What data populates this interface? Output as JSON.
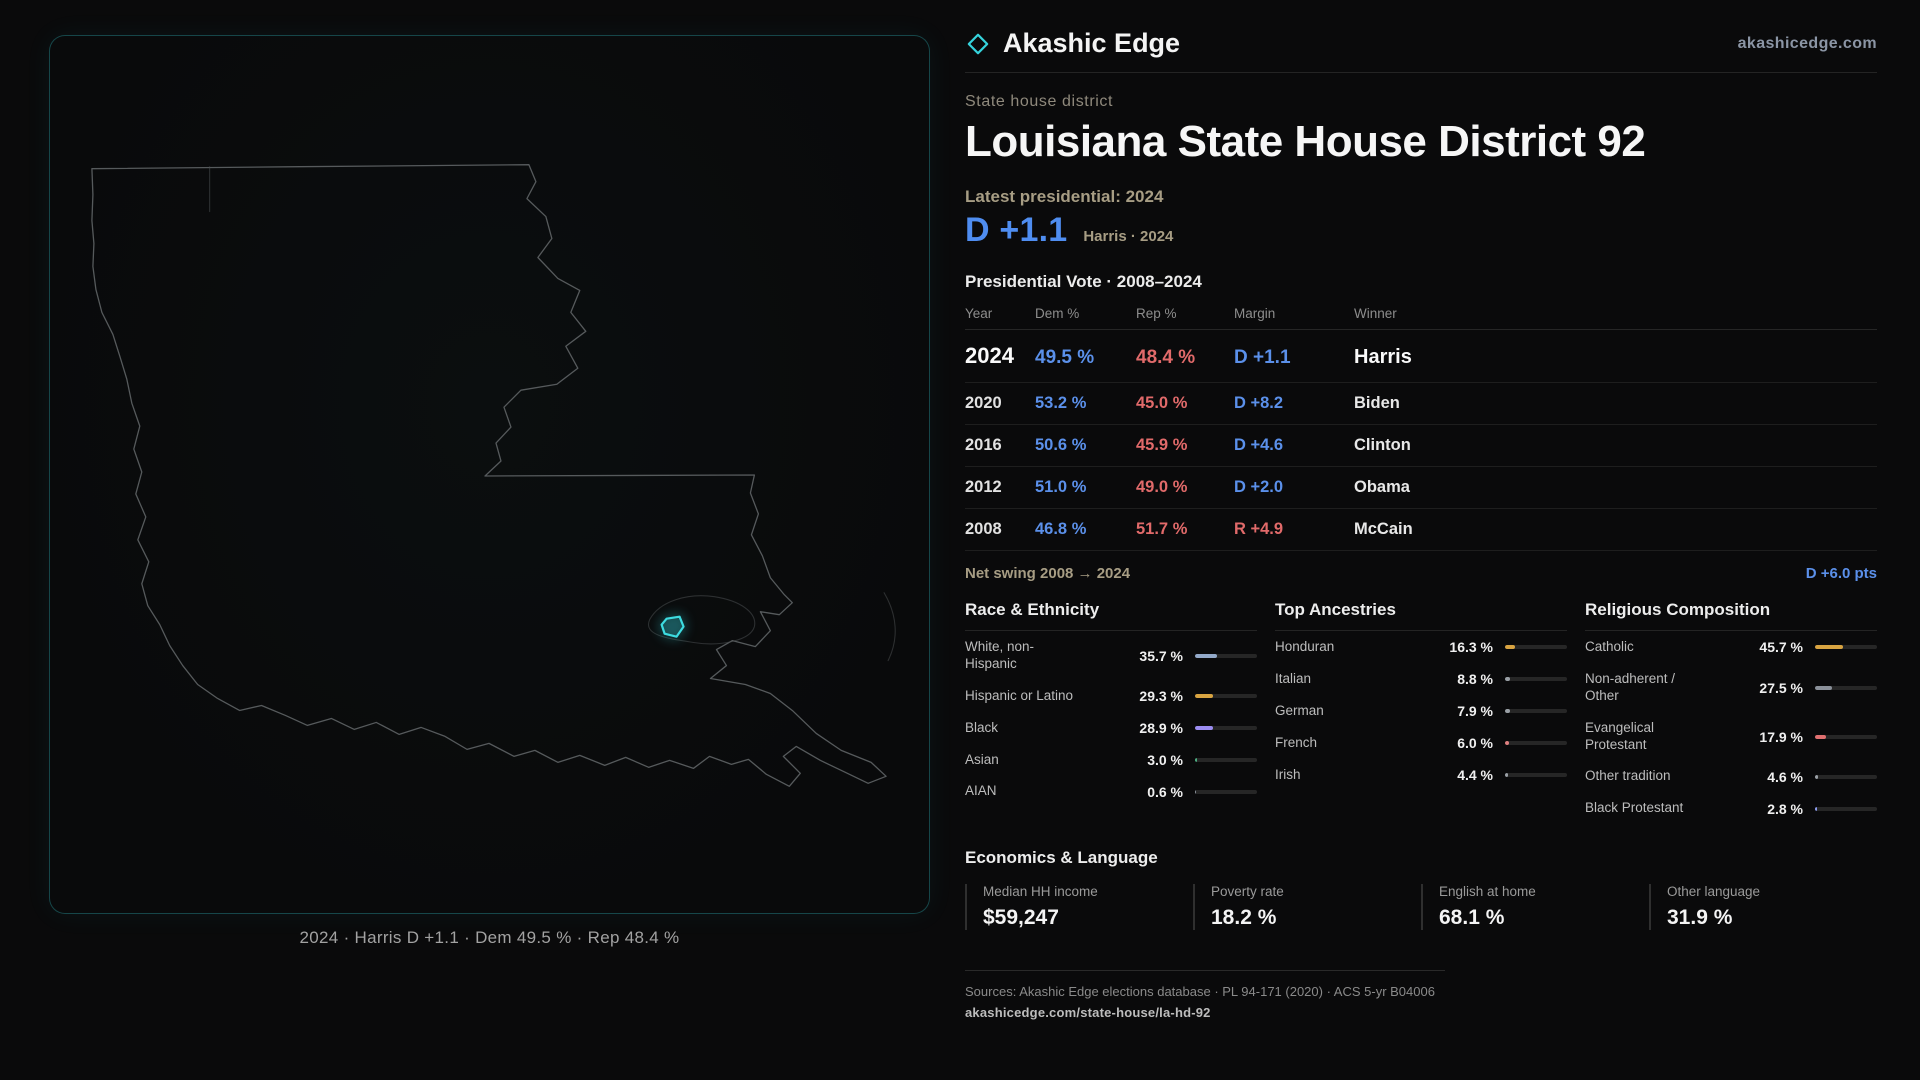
{
  "header": {
    "brand": "Akashic Edge",
    "site": "akashicedge.com",
    "kicker": "State house district",
    "title": "Louisiana State House District 92"
  },
  "latest": {
    "label": "Latest presidential: 2024",
    "margin": "D +1.1",
    "context": "Harris · 2024"
  },
  "table": {
    "title": "Presidential Vote · 2008–2024",
    "columns": [
      "Year",
      "Dem %",
      "Rep %",
      "Margin",
      "Winner"
    ],
    "rows": [
      {
        "year": "2024",
        "dem": "49.5 %",
        "rep": "48.4 %",
        "margin": "D +1.1",
        "winner": "Harris"
      },
      {
        "year": "2020",
        "dem": "53.2 %",
        "rep": "45.0 %",
        "margin": "D +8.2",
        "winner": "Biden"
      },
      {
        "year": "2016",
        "dem": "50.6 %",
        "rep": "45.9 %",
        "margin": "D +4.6",
        "winner": "Clinton"
      },
      {
        "year": "2012",
        "dem": "51.0 %",
        "rep": "49.0 %",
        "margin": "D +2.0",
        "winner": "Obama"
      },
      {
        "year": "2008",
        "dem": "46.8 %",
        "rep": "51.7 %",
        "margin": "R +4.9",
        "winner": "McCain"
      }
    ]
  },
  "swing": {
    "label": "Net swing 2008 → 2024",
    "value": "D +6.0 pts"
  },
  "demographics": [
    {
      "title": "Race & Ethnicity",
      "rows": [
        {
          "label": "White, non-Hispanic",
          "display": "35.7 %",
          "value": 35.7,
          "color": "#93a9c9"
        },
        {
          "label": "Hispanic or Latino",
          "display": "29.3 %",
          "value": 29.3,
          "color": "#d9a441"
        },
        {
          "label": "Black",
          "display": "28.9 %",
          "value": 28.9,
          "color": "#9c8df2"
        },
        {
          "label": "Asian",
          "display": "3.0 %",
          "value": 3.0,
          "color": "#4cae82"
        },
        {
          "label": "AIAN",
          "display": "0.6 %",
          "value": 0.6,
          "color": "#8a9099"
        }
      ]
    },
    {
      "title": "Top Ancestries",
      "rows": [
        {
          "label": "Honduran",
          "display": "16.3 %",
          "value": 16.3,
          "color": "#d9a441"
        },
        {
          "label": "Italian",
          "display": "8.8 %",
          "value": 8.8,
          "color": "#9aa0a6"
        },
        {
          "label": "German",
          "display": "7.9 %",
          "value": 7.9,
          "color": "#9aa0a6"
        },
        {
          "label": "French",
          "display": "6.0 %",
          "value": 6.0,
          "color": "#e08080"
        },
        {
          "label": "Irish",
          "display": "4.4 %",
          "value": 4.4,
          "color": "#9aa0a6"
        }
      ]
    },
    {
      "title": "Religious Composition",
      "rows": [
        {
          "label": "Catholic",
          "display": "45.7 %",
          "value": 45.7,
          "color": "#d9a441"
        },
        {
          "label": "Non-adherent / Other",
          "display": "27.5 %",
          "value": 27.5,
          "color": "#8a9099"
        },
        {
          "label": "Evangelical Protestant",
          "display": "17.9 %",
          "value": 17.9,
          "color": "#e07070"
        },
        {
          "label": "Other tradition",
          "display": "4.6 %",
          "value": 4.6,
          "color": "#9aa0a6"
        },
        {
          "label": "Black Protestant",
          "display": "2.8 %",
          "value": 2.8,
          "color": "#8c9cf0"
        }
      ]
    }
  ],
  "economics": {
    "title": "Economics & Language",
    "stats": [
      {
        "label": "Median HH income",
        "value": "$59,247"
      },
      {
        "label": "Poverty rate",
        "value": "18.2 %"
      },
      {
        "label": "English at home",
        "value": "68.1 %"
      },
      {
        "label": "Other language",
        "value": "31.9 %"
      }
    ]
  },
  "footer": {
    "sources": "Sources: Akashic Edge elections database · PL 94-171 (2020) · ACS 5-yr B04006",
    "url": "akashicedge.com/state-house/la-hd-92"
  },
  "map": {
    "caption": "2024 · Harris D +1.1 · Dem 49.5 % · Rep 48.4 %"
  },
  "colors": {
    "dem_blue": "#5b90ea",
    "rep_red": "#e16a6a",
    "accent_cyan": "#35d3dc",
    "label_gold": "#a79d84"
  }
}
